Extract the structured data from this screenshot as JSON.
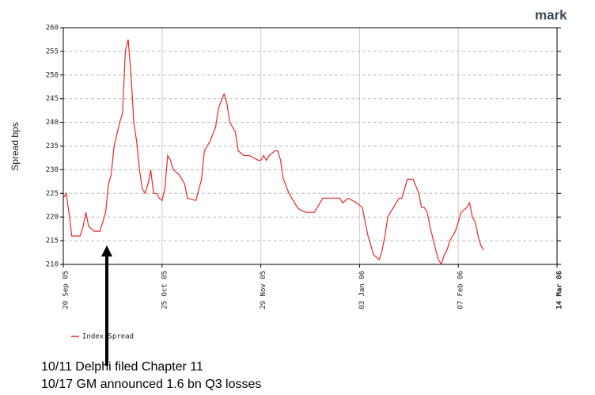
{
  "chart_data": {
    "type": "line",
    "brand": "mark",
    "ylabel": "Spread bps",
    "x": [
      "2005-09-20",
      "2005-09-21",
      "2005-09-22",
      "2005-09-23",
      "2005-09-26",
      "2005-09-27",
      "2005-09-28",
      "2005-09-29",
      "2005-10-01",
      "2005-10-03",
      "2005-10-05",
      "2005-10-06",
      "2005-10-07",
      "2005-10-08",
      "2005-10-10",
      "2005-10-11",
      "2005-10-12",
      "2005-10-13",
      "2005-10-14",
      "2005-10-15",
      "2005-10-16",
      "2005-10-17",
      "2005-10-18",
      "2005-10-19",
      "2005-10-20",
      "2005-10-21",
      "2005-10-22",
      "2005-10-23",
      "2005-10-24",
      "2005-10-25",
      "2005-10-26",
      "2005-10-27",
      "2005-10-28",
      "2005-10-29",
      "2005-10-31",
      "2005-11-02",
      "2005-11-03",
      "2005-11-06",
      "2005-11-08",
      "2005-11-09",
      "2005-11-11",
      "2005-11-13",
      "2005-11-14",
      "2005-11-16",
      "2005-11-17",
      "2005-11-18",
      "2005-11-20",
      "2005-11-21",
      "2005-11-23",
      "2005-11-25",
      "2005-11-28",
      "2005-11-29",
      "2005-11-30",
      "2005-12-01",
      "2005-12-02",
      "2005-12-04",
      "2005-12-05",
      "2005-12-06",
      "2005-12-07",
      "2005-12-09",
      "2005-12-10",
      "2005-12-12",
      "2005-12-13",
      "2005-12-15",
      "2005-12-18",
      "2005-12-20",
      "2005-12-21",
      "2005-12-24",
      "2005-12-27",
      "2005-12-28",
      "2005-12-30",
      "2006-01-02",
      "2006-01-04",
      "2006-01-05",
      "2006-01-06",
      "2006-01-07",
      "2006-01-08",
      "2006-01-10",
      "2006-01-11",
      "2006-01-12",
      "2006-01-13",
      "2006-01-14",
      "2006-01-16",
      "2006-01-17",
      "2006-01-18",
      "2006-01-20",
      "2006-01-21",
      "2006-01-22",
      "2006-01-24",
      "2006-01-25",
      "2006-01-26",
      "2006-01-27",
      "2006-01-28",
      "2006-01-30",
      "2006-01-31",
      "2006-02-01",
      "2006-02-02",
      "2006-02-03",
      "2006-02-04",
      "2006-02-06",
      "2006-02-07",
      "2006-02-08",
      "2006-02-10",
      "2006-02-11",
      "2006-02-12",
      "2006-02-13",
      "2006-02-14",
      "2006-02-15",
      "2006-02-16"
    ],
    "series": [
      {
        "name": "Index Spread",
        "color": "#e8282b",
        "values": [
          224,
          225,
          221,
          216,
          216,
          218,
          221,
          218,
          217,
          217,
          221,
          227,
          229,
          235,
          240,
          242,
          255,
          257.5,
          250,
          240,
          236,
          230,
          226,
          225,
          227,
          230,
          225,
          225,
          224,
          223.5,
          226,
          233,
          232,
          230,
          229,
          227,
          224,
          223.5,
          228,
          234,
          236,
          239,
          243,
          246,
          244,
          240,
          238,
          234,
          233,
          233,
          232,
          232,
          233,
          232,
          233,
          234,
          234,
          232,
          228,
          225,
          224,
          222,
          221.5,
          221,
          221,
          223,
          224,
          224,
          224,
          223,
          224,
          223,
          222,
          219,
          216,
          214,
          212,
          211,
          213,
          216,
          220,
          221,
          223,
          224,
          224,
          228,
          228,
          228,
          225,
          222,
          222,
          221,
          218,
          213,
          211,
          210,
          212,
          213,
          215,
          217,
          219,
          221,
          222,
          223,
          220,
          219,
          216,
          214,
          213
        ]
      }
    ],
    "xlim": [
      "2005-09-20",
      "2006-03-14"
    ],
    "xticks": [
      {
        "value": "2005-09-20",
        "label": "20 Sep 05"
      },
      {
        "value": "2005-10-25",
        "label": "25 Oct 05"
      },
      {
        "value": "2005-11-29",
        "label": "29 Nov 05"
      },
      {
        "value": "2006-01-03",
        "label": "03 Jan 06"
      },
      {
        "value": "2006-02-07",
        "label": "07 Feb 06"
      },
      {
        "value": "2006-03-14",
        "label": "14 Mar 06"
      }
    ],
    "ylim": [
      210,
      260
    ],
    "yticks": [
      210,
      215,
      220,
      225,
      230,
      235,
      240,
      245,
      250,
      255,
      260
    ],
    "grid": true,
    "annotations": [
      "10/11 Delphi filed Chapter 11",
      "10/17 GM announced 1.6 bn Q3 losses"
    ]
  }
}
